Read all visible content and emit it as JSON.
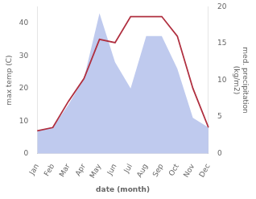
{
  "chart_data": {
    "type": "line",
    "categories": [
      "Jan",
      "Feb",
      "Mar",
      "Apr",
      "May",
      "Jun",
      "Jul",
      "Aug",
      "Sep",
      "Oct",
      "Nov",
      "Dec"
    ],
    "series": [
      {
        "type": "area",
        "color": "#aab8e8",
        "values": [
          7,
          8,
          15,
          23,
          43,
          28,
          20,
          36,
          36,
          26,
          11,
          8
        ]
      },
      {
        "type": "line",
        "color": "#b03040",
        "values": [
          7,
          8,
          16,
          23,
          35,
          34,
          42,
          42,
          42,
          36,
          20,
          8
        ]
      }
    ],
    "xlabel": "date (month)",
    "ylabel": "max temp (C)",
    "y2label": "med. precipitation\n(kg/m2)",
    "ylim": [
      0,
      45
    ],
    "yticks": [
      0,
      10,
      20,
      30,
      40
    ],
    "y2lim": [
      0,
      20
    ],
    "y2ticks": [
      0,
      5,
      10,
      15,
      20
    ],
    "grid": false
  }
}
